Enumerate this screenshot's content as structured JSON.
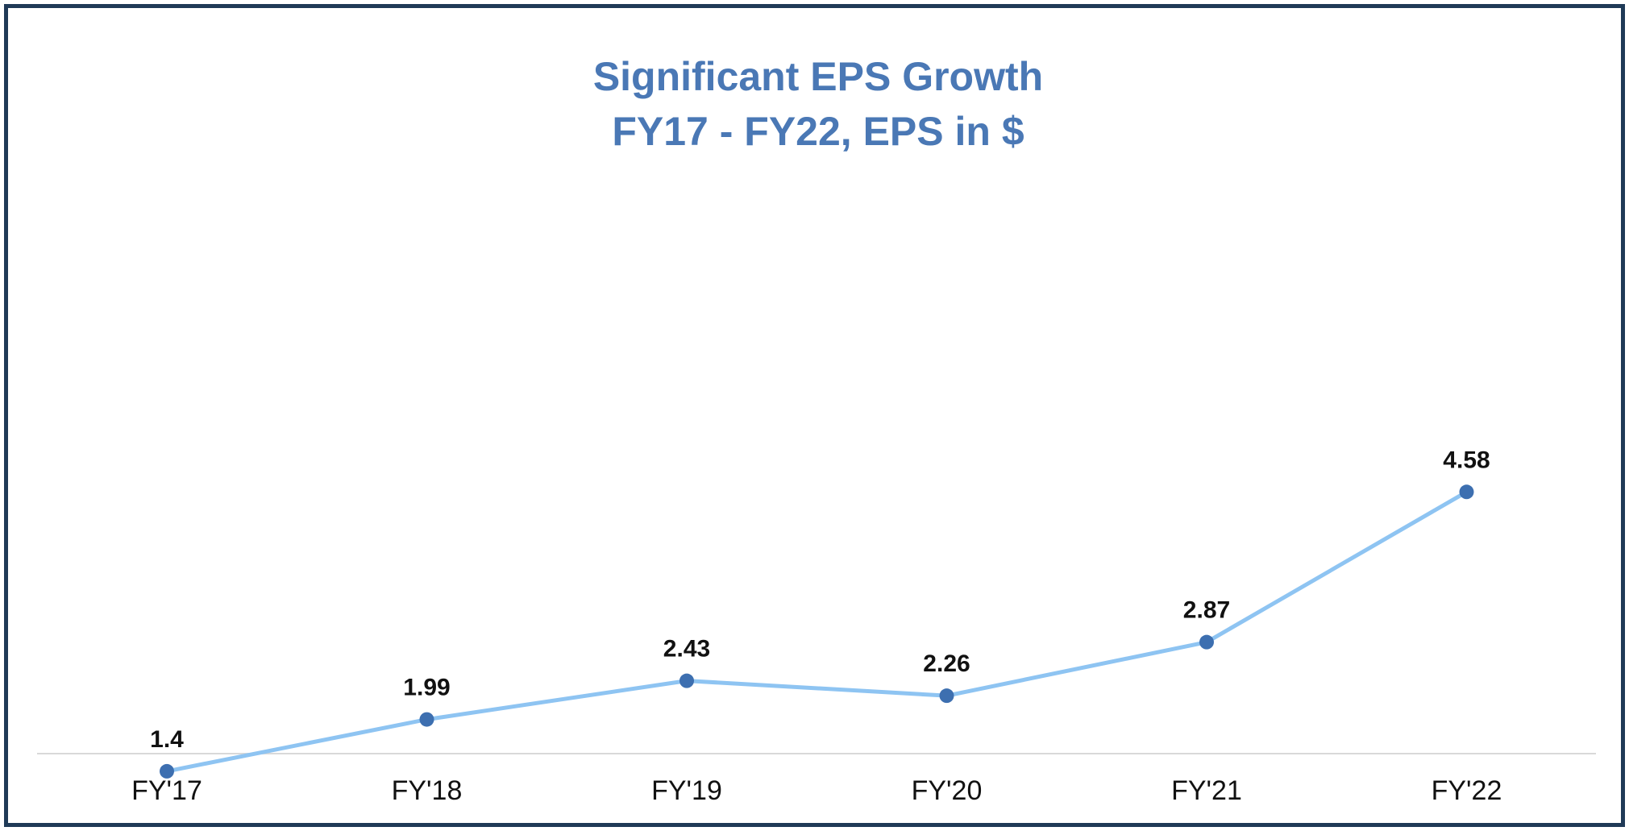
{
  "chart_data": {
    "type": "line",
    "title": "Significant EPS Growth",
    "subtitle": "FY17 - FY22, EPS in $",
    "categories": [
      "FY'17",
      "FY'18",
      "FY'19",
      "FY'20",
      "FY'21",
      "FY'22"
    ],
    "series": [
      {
        "values": [
          1.4,
          1.99,
          2.43,
          2.26,
          2.87,
          4.58
        ]
      }
    ],
    "data_labels": [
      "1.4",
      "1.99",
      "2.43",
      "2.26",
      "2.87",
      "4.58"
    ],
    "xlabel": "",
    "ylabel": "",
    "ylim": [
      0,
      5
    ],
    "grid": false,
    "legend": "none",
    "colors": {
      "title": "#4a78b5",
      "line": "#8ec4f2",
      "marker": "#3d6fb0",
      "frame": "#1f3a57",
      "baseline": "#d9d9d9",
      "text": "#111111"
    }
  }
}
